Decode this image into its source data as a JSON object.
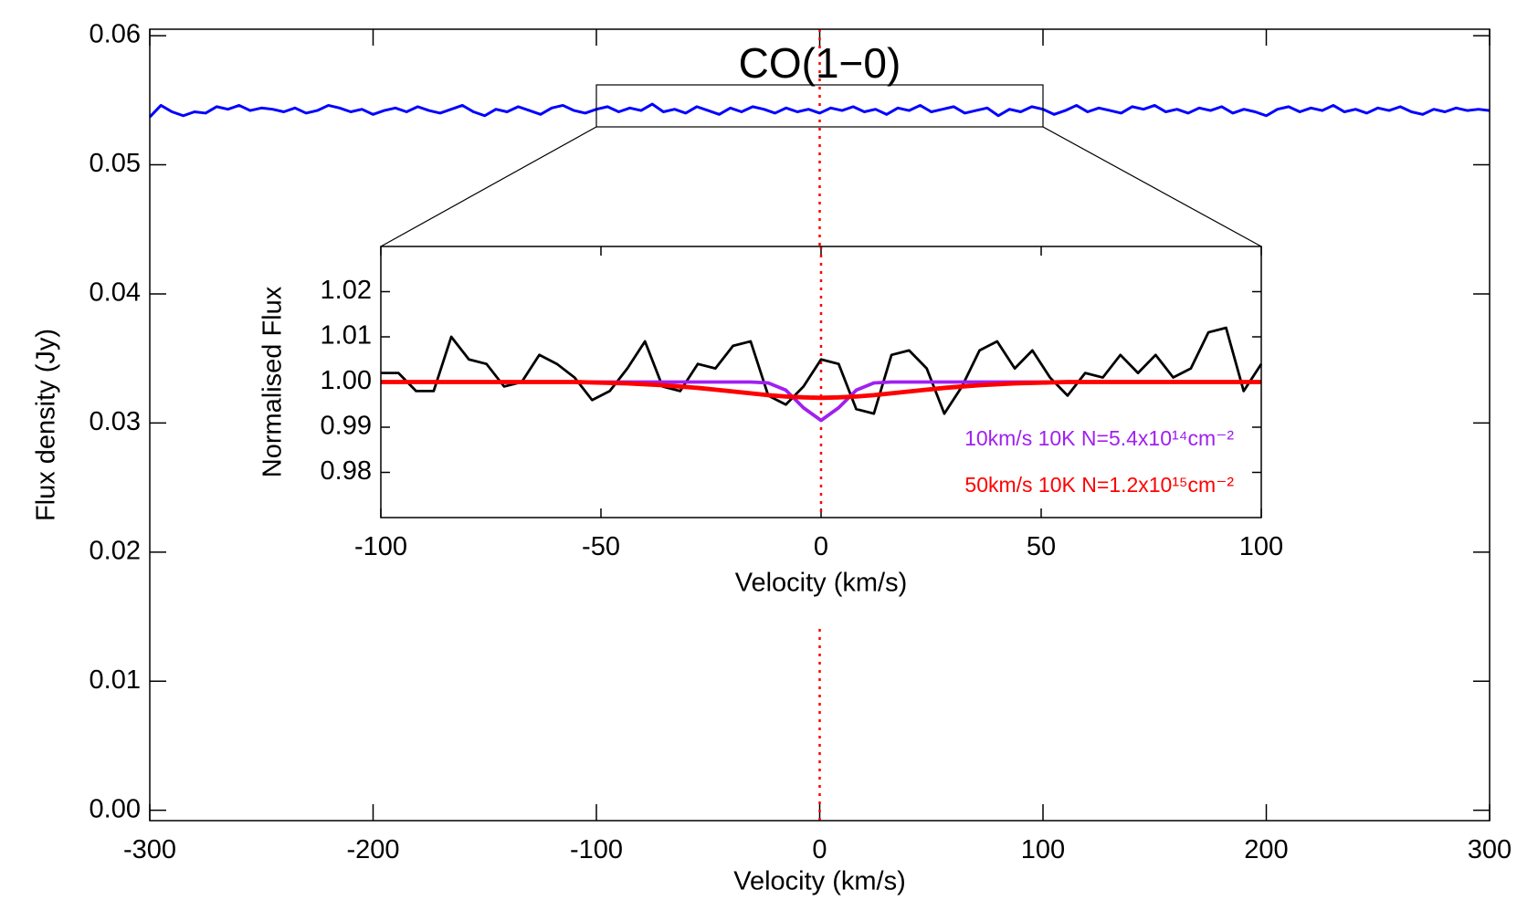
{
  "chart_data": [
    {
      "type": "line",
      "title": "CO(1−0)",
      "x_label": "Velocity (km/s)",
      "y_label": "Flux density (Jy)",
      "x": [
        -300,
        -295,
        -290,
        -285,
        -280,
        -275,
        -270,
        -265,
        -260,
        -255,
        -250,
        -245,
        -240,
        -235,
        -230,
        -225,
        -220,
        -215,
        -210,
        -205,
        -200,
        -195,
        -190,
        -185,
        -180,
        -175,
        -170,
        -165,
        -160,
        -155,
        -150,
        -145,
        -140,
        -135,
        -130,
        -125,
        -120,
        -115,
        -110,
        -105,
        -100,
        -95,
        -90,
        -85,
        -80,
        -75,
        -70,
        -65,
        -60,
        -55,
        -50,
        -45,
        -40,
        -35,
        -30,
        -25,
        -20,
        -15,
        -10,
        -5,
        0,
        5,
        10,
        15,
        20,
        25,
        30,
        35,
        40,
        45,
        50,
        55,
        60,
        65,
        70,
        75,
        80,
        85,
        90,
        95,
        100,
        105,
        110,
        115,
        120,
        125,
        130,
        135,
        140,
        145,
        150,
        155,
        160,
        165,
        170,
        175,
        180,
        185,
        190,
        195,
        200,
        205,
        210,
        215,
        220,
        225,
        230,
        235,
        240,
        245,
        250,
        255,
        260,
        265,
        270,
        275,
        280,
        285,
        290,
        295,
        300
      ],
      "series": [
        {
          "color": "#0000ff",
          "values": [
            0.0537,
            0.0546,
            0.0541,
            0.0538,
            0.0541,
            0.054,
            0.0545,
            0.0543,
            0.0546,
            0.0542,
            0.0544,
            0.0543,
            0.0541,
            0.0544,
            0.054,
            0.0542,
            0.0546,
            0.0544,
            0.0541,
            0.0543,
            0.0539,
            0.0542,
            0.0544,
            0.0541,
            0.0545,
            0.0542,
            0.054,
            0.0543,
            0.0546,
            0.0541,
            0.0538,
            0.0543,
            0.0541,
            0.0545,
            0.0542,
            0.0539,
            0.0544,
            0.0546,
            0.0542,
            0.054,
            0.0543,
            0.0545,
            0.0541,
            0.0544,
            0.0542,
            0.0547,
            0.0541,
            0.0543,
            0.054,
            0.0545,
            0.0542,
            0.0539,
            0.0544,
            0.0541,
            0.0545,
            0.0543,
            0.054,
            0.0544,
            0.0541,
            0.0543,
            0.054,
            0.0544,
            0.0542,
            0.0545,
            0.0541,
            0.0543,
            0.0539,
            0.0544,
            0.0542,
            0.0546,
            0.0541,
            0.0543,
            0.0545,
            0.054,
            0.0542,
            0.0544,
            0.0538,
            0.0543,
            0.0541,
            0.0545,
            0.0543,
            0.0539,
            0.0542,
            0.0546,
            0.0541,
            0.0544,
            0.0542,
            0.054,
            0.0545,
            0.0543,
            0.0546,
            0.0541,
            0.0543,
            0.054,
            0.0544,
            0.0542,
            0.0545,
            0.054,
            0.0543,
            0.0541,
            0.0538,
            0.0543,
            0.0545,
            0.0541,
            0.0544,
            0.0542,
            0.0546,
            0.0541,
            0.0543,
            0.054,
            0.0544,
            0.0542,
            0.0545,
            0.0541,
            0.0539,
            0.0543,
            0.0541,
            0.0544,
            0.0542,
            0.0543,
            0.0542
          ]
        }
      ],
      "xlim": [
        -300,
        300
      ],
      "ylim": [
        -0.0008,
        0.0605
      ],
      "xticks": [
        -300,
        -200,
        -100,
        0,
        100,
        200,
        300
      ],
      "yticks": [
        {
          "value": 0,
          "label": "0.00"
        },
        0.01,
        0.02,
        0.03,
        0.04,
        0.05,
        0.06
      ],
      "vline": 0,
      "vline_color": "#ff0000"
    },
    {
      "type": "line",
      "x_label": "Velocity (km/s)",
      "y_label": "Normalised Flux",
      "x": [
        -100,
        -96,
        -92,
        -88,
        -84,
        -80,
        -76,
        -72,
        -68,
        -64,
        -60,
        -56,
        -52,
        -48,
        -44,
        -40,
        -36,
        -32,
        -28,
        -24,
        -20,
        -16,
        -12,
        -8,
        -4,
        0,
        4,
        8,
        12,
        16,
        20,
        24,
        28,
        32,
        36,
        40,
        44,
        48,
        52,
        56,
        60,
        64,
        68,
        72,
        76,
        80,
        84,
        88,
        92,
        96,
        100
      ],
      "series": [
        {
          "color": "#000000",
          "values": [
            1.002,
            1.002,
            0.998,
            0.998,
            1.01,
            1.005,
            1.004,
            0.999,
            1.0,
            1.006,
            1.004,
            1.001,
            0.996,
            0.998,
            1.003,
            1.009,
            0.999,
            0.998,
            1.004,
            1.003,
            1.008,
            1.009,
            0.997,
            0.995,
            0.999,
            1.005,
            1.004,
            0.994,
            0.993,
            1.006,
            1.007,
            1.003,
            0.993,
            0.999,
            1.007,
            1.009,
            1.003,
            1.007,
            1.001,
            0.997,
            1.002,
            1.001,
            1.006,
            1.002,
            1.006,
            1.001,
            1.003,
            1.011,
            1.012,
            0.998,
            1.004
          ]
        },
        {
          "name": "10km/s 10K N=5.4x10¹⁴cm⁻²",
          "color": "#a020f0",
          "values": [
            1,
            1,
            1,
            1,
            1,
            1,
            1,
            1,
            1,
            1,
            1,
            1,
            1,
            1,
            1,
            1,
            1,
            1,
            1,
            1,
            1,
            1,
            0.9998,
            0.9982,
            0.9943,
            0.9915,
            0.9943,
            0.9982,
            0.9998,
            1,
            1,
            1,
            1,
            1,
            1,
            1,
            1,
            1,
            1,
            1,
            1,
            1,
            1,
            1,
            1,
            1,
            1,
            1,
            1,
            1,
            1
          ]
        },
        {
          "name": "50km/s 10K N=1.2x10¹⁵cm⁻²",
          "color": "#ff0000",
          "values": [
            1,
            1,
            1,
            1,
            1,
            1,
            1,
            1,
            1,
            1,
            1,
            1,
            0.9999,
            0.9998,
            0.9997,
            0.9995,
            0.9993,
            0.999,
            0.9987,
            0.9983,
            0.9979,
            0.9975,
            0.9971,
            0.9968,
            0.9966,
            0.9965,
            0.9966,
            0.9968,
            0.9971,
            0.9975,
            0.9979,
            0.9983,
            0.9987,
            0.999,
            0.9993,
            0.9995,
            0.9997,
            0.9998,
            0.9999,
            1,
            1,
            1,
            1,
            1,
            1,
            1,
            1,
            1,
            1,
            1,
            1
          ]
        }
      ],
      "xlim": [
        -100,
        100
      ],
      "ylim": [
        0.97,
        1.03
      ],
      "xticks": [
        -100,
        -50,
        0,
        50,
        100
      ],
      "yticks": [
        0.98,
        0.99,
        {
          "value": 1,
          "label": "1.00"
        },
        1.01,
        1.02
      ],
      "vline": 0,
      "vline_color": "#ff0000"
    }
  ]
}
